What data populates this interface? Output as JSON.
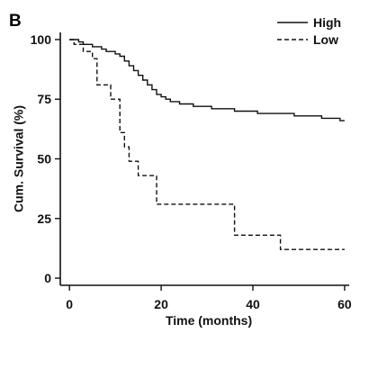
{
  "panel_label": "B",
  "chart_data": {
    "type": "line",
    "subtype": "kaplan-meier-step",
    "xlabel": "Time (months)",
    "ylabel": "Cum. Survival (%)",
    "xlim": [
      -2,
      61
    ],
    "ylim": [
      -3,
      103
    ],
    "x_ticks": [
      0,
      20,
      40,
      60
    ],
    "y_ticks": [
      0,
      25,
      50,
      75,
      100
    ],
    "grid": false,
    "legend_position": "top-right",
    "series": [
      {
        "name": "High",
        "line_style": "solid",
        "color": "#111111",
        "points": [
          [
            0,
            100
          ],
          [
            2,
            99
          ],
          [
            3,
            98
          ],
          [
            5,
            97
          ],
          [
            7,
            96
          ],
          [
            8,
            95
          ],
          [
            10,
            94
          ],
          [
            11,
            93
          ],
          [
            12,
            91
          ],
          [
            13,
            89
          ],
          [
            14,
            87
          ],
          [
            15,
            85
          ],
          [
            16,
            83
          ],
          [
            17,
            81
          ],
          [
            18,
            79
          ],
          [
            19,
            77
          ],
          [
            20,
            76
          ],
          [
            21,
            75
          ],
          [
            22,
            74
          ],
          [
            24,
            73
          ],
          [
            27,
            72
          ],
          [
            31,
            71
          ],
          [
            36,
            70
          ],
          [
            41,
            69
          ],
          [
            49,
            68
          ],
          [
            55,
            67
          ],
          [
            59,
            66
          ],
          [
            60,
            66
          ]
        ]
      },
      {
        "name": "Low",
        "line_style": "dashed",
        "color": "#111111",
        "points": [
          [
            0,
            100
          ],
          [
            1,
            98
          ],
          [
            3,
            95
          ],
          [
            5,
            92
          ],
          [
            6,
            81
          ],
          [
            9,
            75
          ],
          [
            11,
            61
          ],
          [
            12,
            55
          ],
          [
            13,
            49
          ],
          [
            15,
            43
          ],
          [
            19,
            31
          ],
          [
            36,
            18
          ],
          [
            46,
            12
          ],
          [
            60,
            12
          ]
        ]
      }
    ]
  }
}
